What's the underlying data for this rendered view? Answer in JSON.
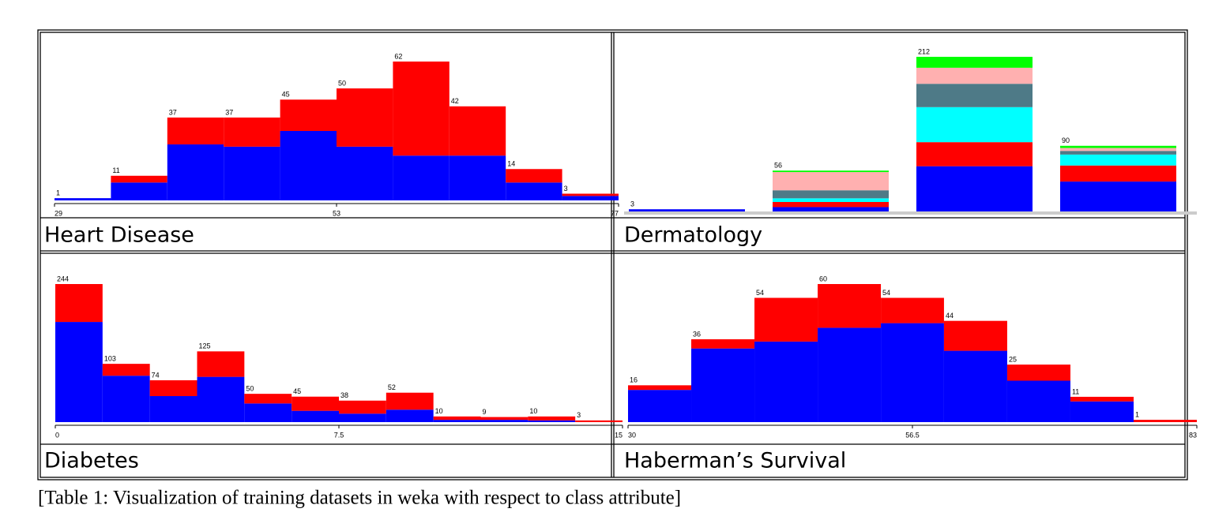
{
  "table": {
    "caption": "[Table 1: Visualization of training datasets in weka with respect to class attribute]"
  },
  "chart_data": [
    {
      "type": "histogram",
      "title": "Heart Disease",
      "bins": [
        29,
        33.8,
        38.6,
        43.4,
        48.2,
        53,
        57.8,
        62.6,
        67.4,
        72.2,
        77
      ],
      "xlim": [
        29,
        77
      ],
      "xticks": [
        29,
        53,
        77
      ],
      "series": [
        {
          "color": "#0000ff",
          "values": [
            1,
            8,
            25,
            24,
            31,
            24,
            20,
            20,
            8,
            2
          ]
        },
        {
          "color": "#ff0000",
          "values": [
            0,
            3,
            12,
            13,
            14,
            26,
            42,
            22,
            6,
            1
          ]
        }
      ],
      "totals": [
        1,
        11,
        37,
        37,
        45,
        50,
        62,
        42,
        14,
        3
      ]
    },
    {
      "type": "bar",
      "title": "Dermatology",
      "categories": [
        null,
        null,
        null,
        null
      ],
      "series": [
        {
          "color": "#0000ff",
          "values": [
            3,
            6,
            62,
            41
          ]
        },
        {
          "color": "#ff0000",
          "values": [
            0,
            7,
            33,
            22
          ]
        },
        {
          "color": "#00ffff",
          "values": [
            0,
            5,
            48,
            15
          ]
        },
        {
          "color": "#4e7a87",
          "values": [
            0,
            11,
            32,
            5
          ]
        },
        {
          "color": "#ffb0b0",
          "values": [
            0,
            25,
            22,
            4
          ]
        },
        {
          "color": "#00ff00",
          "values": [
            0,
            2,
            15,
            3
          ]
        }
      ],
      "totals": [
        3,
        56,
        212,
        90
      ]
    },
    {
      "type": "histogram",
      "title": "Diabetes",
      "bins": [
        0,
        1.25,
        2.5,
        3.75,
        5,
        6.25,
        7.5,
        8.75,
        10,
        11.25,
        12.5,
        13.75,
        15
      ],
      "xlim": [
        0,
        15
      ],
      "xticks": [
        0,
        7.5,
        15
      ],
      "series": [
        {
          "color": "#0000ff",
          "values": [
            177,
            82,
            46,
            80,
            33,
            20,
            15,
            22,
            4,
            4,
            3,
            0
          ]
        },
        {
          "color": "#ff0000",
          "values": [
            67,
            21,
            28,
            45,
            17,
            25,
            23,
            30,
            6,
            5,
            7,
            3
          ]
        }
      ],
      "totals": [
        244,
        103,
        74,
        125,
        50,
        45,
        38,
        52,
        10,
        9,
        10,
        3
      ]
    },
    {
      "type": "histogram",
      "title": "Haberman’s Survival",
      "bins": [
        30,
        35.89,
        41.78,
        47.67,
        53.56,
        59.44,
        65.33,
        71.22,
        77.11,
        83
      ],
      "xlim": [
        30,
        83
      ],
      "xticks": [
        30,
        56.5,
        83
      ],
      "series": [
        {
          "color": "#0000ff",
          "values": [
            14,
            32,
            35,
            41,
            43,
            31,
            18,
            9,
            0
          ]
        },
        {
          "color": "#ff0000",
          "values": [
            2,
            4,
            19,
            19,
            11,
            13,
            7,
            2,
            1
          ]
        }
      ],
      "totals": [
        16,
        36,
        54,
        60,
        54,
        44,
        25,
        11,
        1
      ]
    }
  ]
}
